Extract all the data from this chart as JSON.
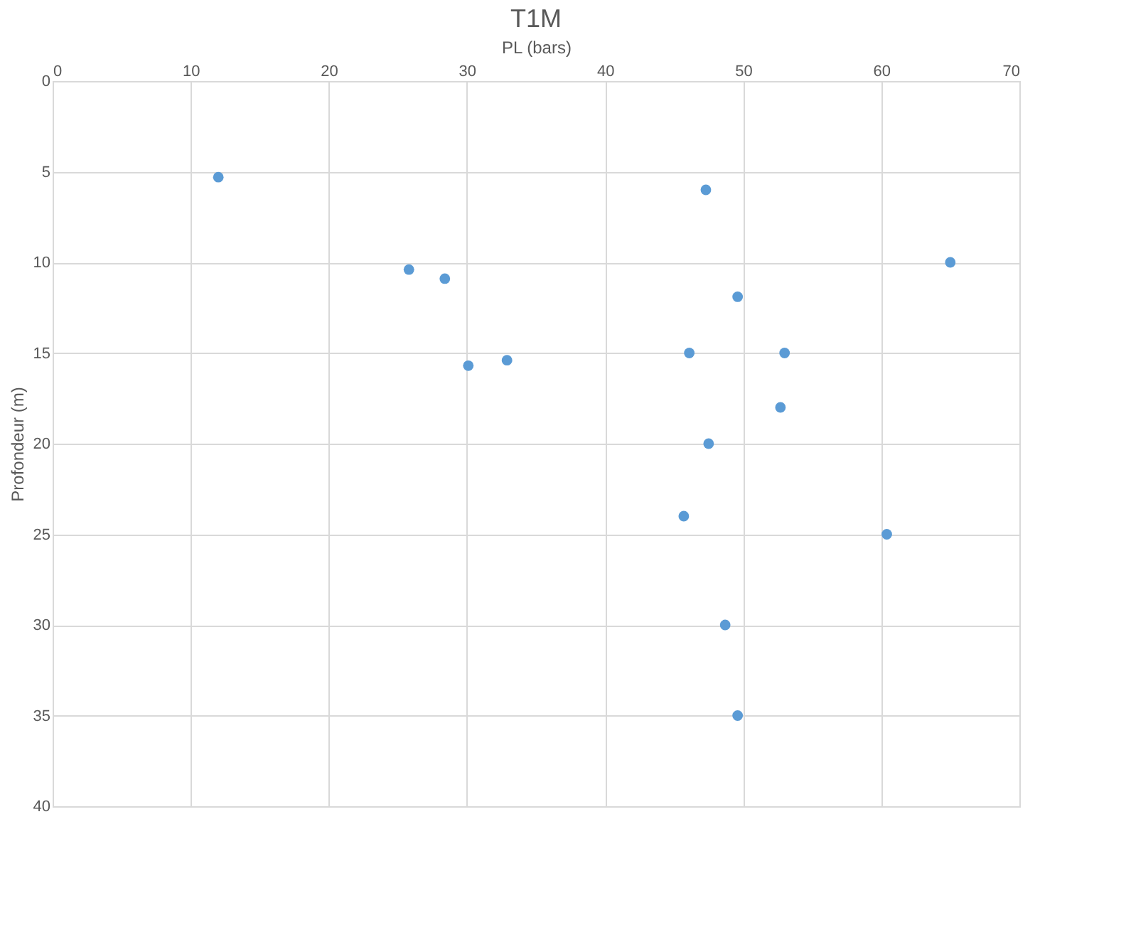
{
  "chart_data": {
    "type": "scatter",
    "title": "T1M",
    "xlabel": "PL (bars)",
    "ylabel": "Profondeur (m)",
    "x": [
      12.0,
      47.3,
      25.8,
      28.4,
      65.0,
      49.6,
      46.1,
      53.0,
      30.1,
      32.9,
      52.7,
      47.5,
      45.7,
      60.4,
      48.7,
      49.6
    ],
    "series": [
      {
        "color": "#5b9bd5",
        "values": [
          5.3,
          6.0,
          10.4,
          10.9,
          10.0,
          11.9,
          15.0,
          15.0,
          15.7,
          15.4,
          18.0,
          20.0,
          24.0,
          25.0,
          30.0,
          35.0
        ]
      }
    ],
    "xlim": [
      0,
      70
    ],
    "xticks": [
      0,
      10,
      20,
      30,
      40,
      50,
      60,
      70
    ],
    "ylim": [
      40,
      0
    ],
    "yticks": [
      0,
      5,
      10,
      15,
      20,
      25,
      30,
      35,
      40
    ],
    "grid": true,
    "marker": "circle"
  }
}
